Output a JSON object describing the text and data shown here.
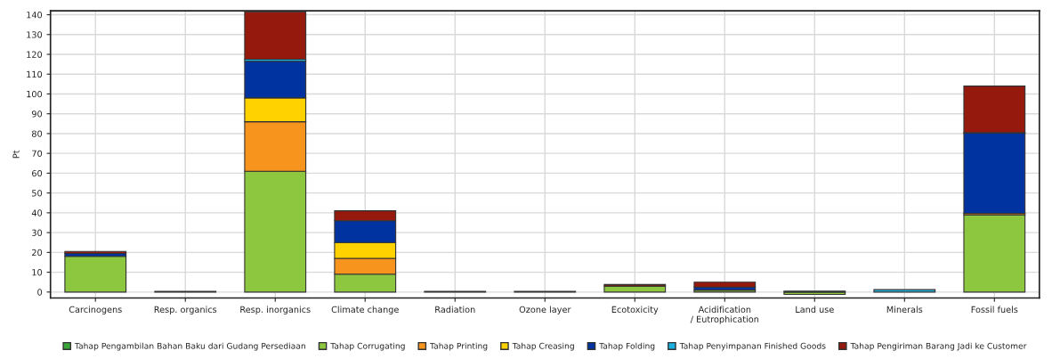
{
  "chart_data": {
    "type": "bar",
    "stacked": true,
    "ylabel": "Pt",
    "categories": [
      "Carcinogens",
      "Resp. organics",
      "Resp. inorganics",
      "Climate change",
      "Radiation",
      "Ozone layer",
      "Ecotoxicity",
      "Acidification\n/ Eutrophication",
      "Land use",
      "Minerals",
      "Fossil fuels"
    ],
    "series": [
      {
        "name": "Tahap Pengambilan Bahan Baku dari Gudang Persediaan",
        "color": "#3aa63a",
        "values": [
          null,
          null,
          null,
          null,
          null,
          null,
          null,
          null,
          null,
          null,
          null
        ]
      },
      {
        "name": "Tahap Corrugating",
        "color": "#8dc63f",
        "values": [
          18,
          null,
          61,
          9,
          null,
          null,
          3,
          1,
          -1.2,
          null,
          39
        ]
      },
      {
        "name": "Tahap Printing",
        "color": "#f7941e",
        "values": [
          null,
          null,
          25,
          8,
          null,
          null,
          null,
          null,
          null,
          null,
          0.7
        ]
      },
      {
        "name": "Tahap Creasing",
        "color": "#ffd200",
        "values": [
          null,
          null,
          12,
          8,
          null,
          null,
          null,
          null,
          null,
          null,
          null
        ]
      },
      {
        "name": "Tahap Folding",
        "color": "#0033a0",
        "values": [
          1.5,
          null,
          18.5,
          11,
          null,
          null,
          null,
          1.5,
          null,
          null,
          40.5
        ]
      },
      {
        "name": "Tahap Penyimpanan Finished Goods",
        "color": "#1ab0e0",
        "values": [
          null,
          null,
          1,
          null,
          0.3,
          null,
          null,
          null,
          0.5,
          1.2,
          0.3
        ]
      },
      {
        "name": "Tahap Pengiriman Barang Jadi ke Customer",
        "color": "#951a0d",
        "values": [
          1,
          0.3,
          24,
          5,
          null,
          0.3,
          0.8,
          2.5,
          null,
          null,
          23.5
        ]
      }
    ],
    "ylim": [
      -3,
      142
    ],
    "yticks": [
      0,
      10,
      20,
      30,
      40,
      50,
      60,
      70,
      80,
      90,
      100,
      110,
      120,
      130,
      140
    ],
    "grid": true,
    "legend": "bottom"
  }
}
